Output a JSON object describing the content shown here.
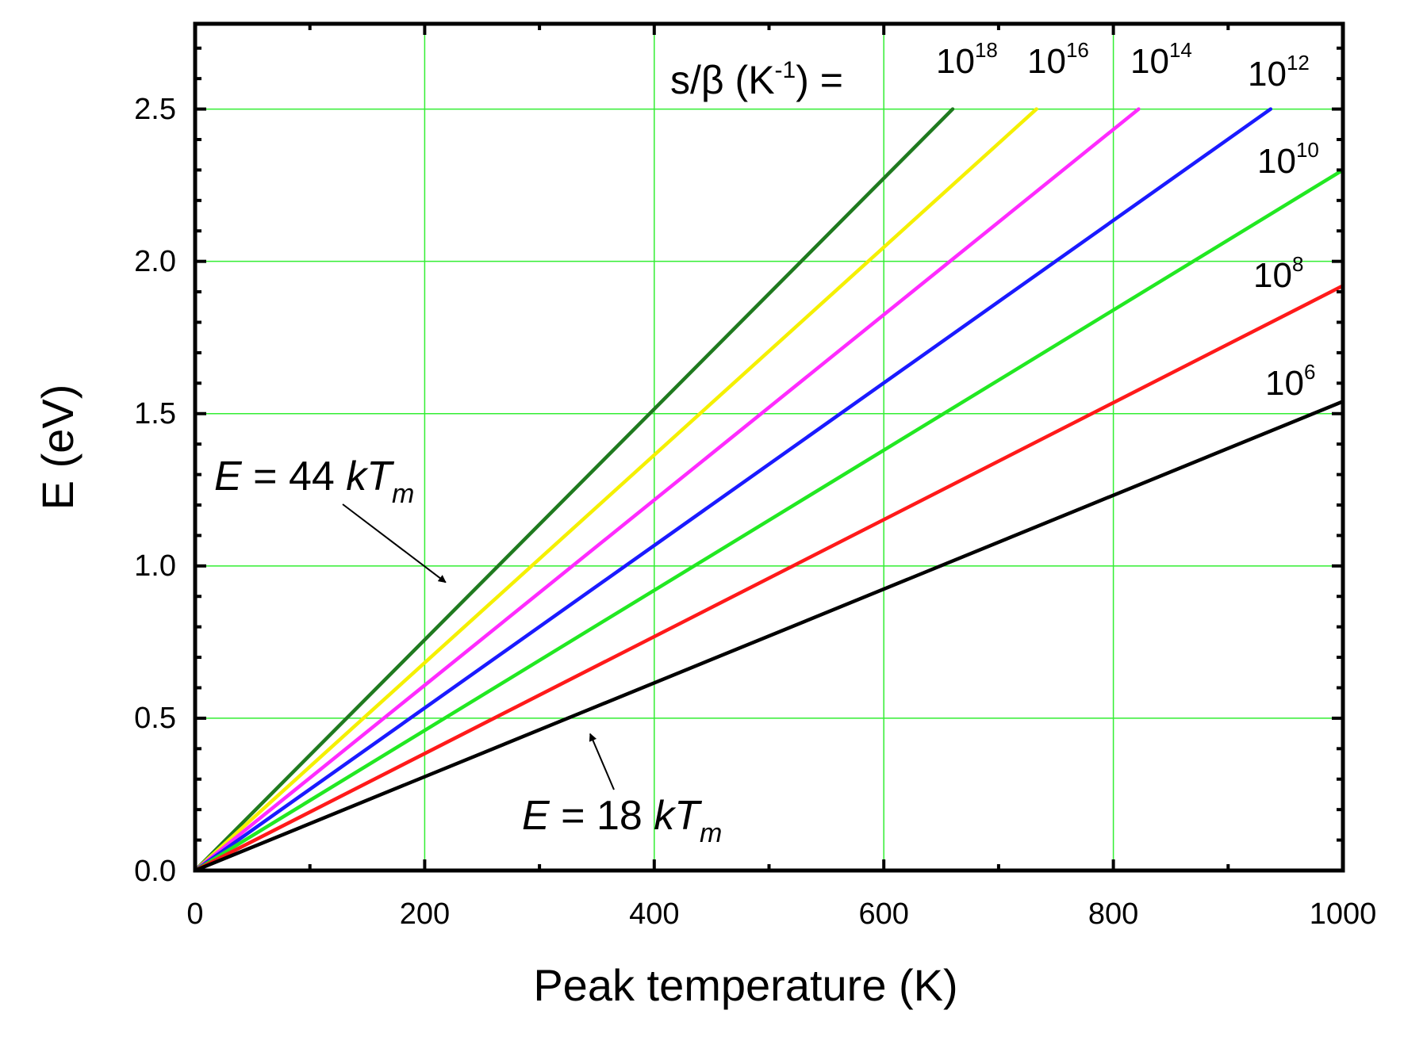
{
  "chart_data": {
    "type": "line",
    "title": "",
    "xlabel": "Peak temperature (K)",
    "ylabel": "E (eV)",
    "xlim": [
      0,
      1000
    ],
    "ylim": [
      0,
      2.78
    ],
    "xticks": [
      0,
      200,
      400,
      600,
      800,
      1000
    ],
    "yticks": [
      0.0,
      0.5,
      1.0,
      1.5,
      2.0,
      2.5
    ],
    "xtick_labels": [
      "0",
      "200",
      "400",
      "600",
      "800",
      "1000"
    ],
    "ytick_labels": [
      "0.0",
      "0.5",
      "1.0",
      "1.5",
      "2.0",
      "2.5"
    ],
    "grid": true,
    "grid_color": "#33ee33",
    "legend_title": {
      "main": "s/β (K",
      "sup": "-1",
      "tail": ") ="
    },
    "series": [
      {
        "name": "10^18",
        "base": "10",
        "exp": "18",
        "color": "#1f7a1f",
        "x": [
          0,
          660
        ],
        "y": [
          0,
          2.5
        ]
      },
      {
        "name": "10^16",
        "base": "10",
        "exp": "16",
        "color": "#f5f000",
        "x": [
          0,
          733
        ],
        "y": [
          0,
          2.5
        ]
      },
      {
        "name": "10^14",
        "base": "10",
        "exp": "14",
        "color": "#ff2bff",
        "x": [
          0,
          822
        ],
        "y": [
          0,
          2.5
        ]
      },
      {
        "name": "10^12",
        "base": "10",
        "exp": "12",
        "color": "#1a1aff",
        "x": [
          0,
          937
        ],
        "y": [
          0,
          2.5
        ]
      },
      {
        "name": "10^10",
        "base": "10",
        "exp": "10",
        "color": "#22e822",
        "x": [
          0,
          1000
        ],
        "y": [
          0,
          2.3
        ]
      },
      {
        "name": "10^8",
        "base": "10",
        "exp": "8",
        "color": "#ff1a1a",
        "x": [
          0,
          1000
        ],
        "y": [
          0,
          1.92
        ]
      },
      {
        "name": "10^6",
        "base": "10",
        "exp": "6",
        "color": "#000000",
        "x": [
          0,
          1000
        ],
        "y": [
          0,
          1.54
        ]
      }
    ],
    "annotations": [
      {
        "id": "upper",
        "prefix": "E",
        "mid": " = 44 ",
        "k": "kT",
        "sub": "m",
        "arrow_to": [
          210,
          0.92
        ]
      },
      {
        "id": "lower",
        "prefix": "E",
        "mid": " = 18 ",
        "k": "kT",
        "sub": "m",
        "arrow_to": [
          340,
          0.48
        ]
      }
    ]
  }
}
